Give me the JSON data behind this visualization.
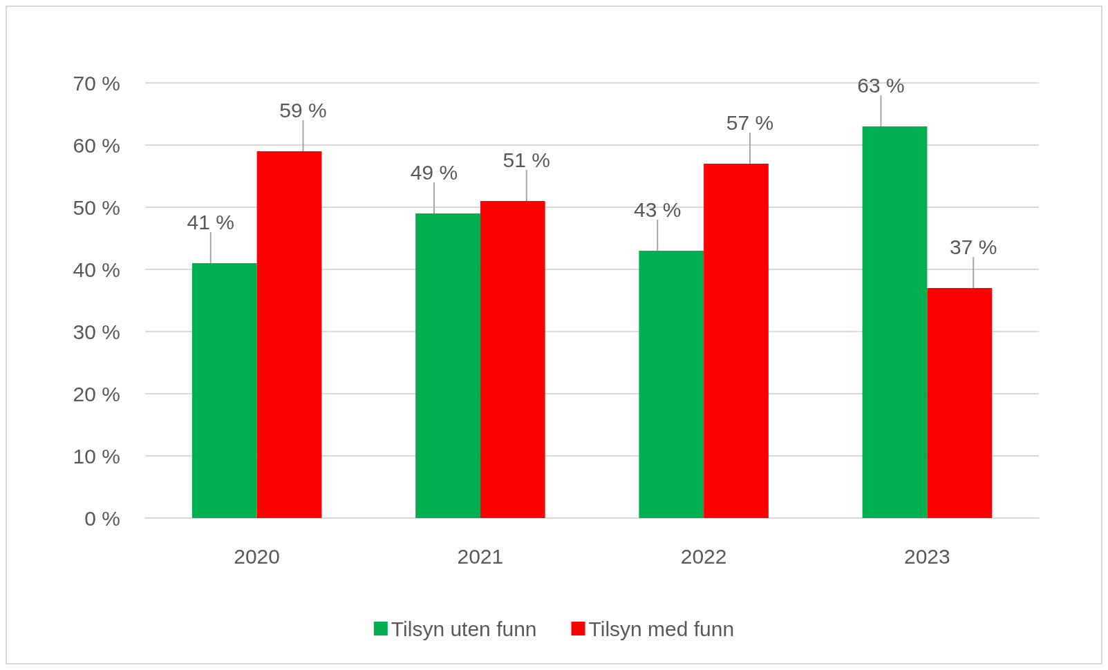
{
  "chart_data": {
    "type": "bar",
    "categories": [
      "2020",
      "2021",
      "2022",
      "2023"
    ],
    "series": [
      {
        "name": "Tilsyn uten funn",
        "color": "#00b050",
        "values": [
          41,
          49,
          43,
          63
        ],
        "value_labels": [
          "41 %",
          "49 %",
          "43 %",
          "63 %"
        ]
      },
      {
        "name": "Tilsyn med funn",
        "color": "#ff0000",
        "values": [
          59,
          51,
          57,
          37
        ],
        "value_labels": [
          "59 %",
          "51 %",
          "57 %",
          "37 %"
        ]
      }
    ],
    "ylim": [
      0,
      70
    ],
    "yticks": [
      {
        "value": 0,
        "label": "0 %"
      },
      {
        "value": 10,
        "label": "10 %"
      },
      {
        "value": 20,
        "label": "20 %"
      },
      {
        "value": 30,
        "label": "30 %"
      },
      {
        "value": 40,
        "label": "40 %"
      },
      {
        "value": 50,
        "label": "50 %"
      },
      {
        "value": 60,
        "label": "60 %"
      },
      {
        "value": 70,
        "label": "70 %"
      }
    ],
    "grid": "y",
    "legend": "bottom"
  }
}
